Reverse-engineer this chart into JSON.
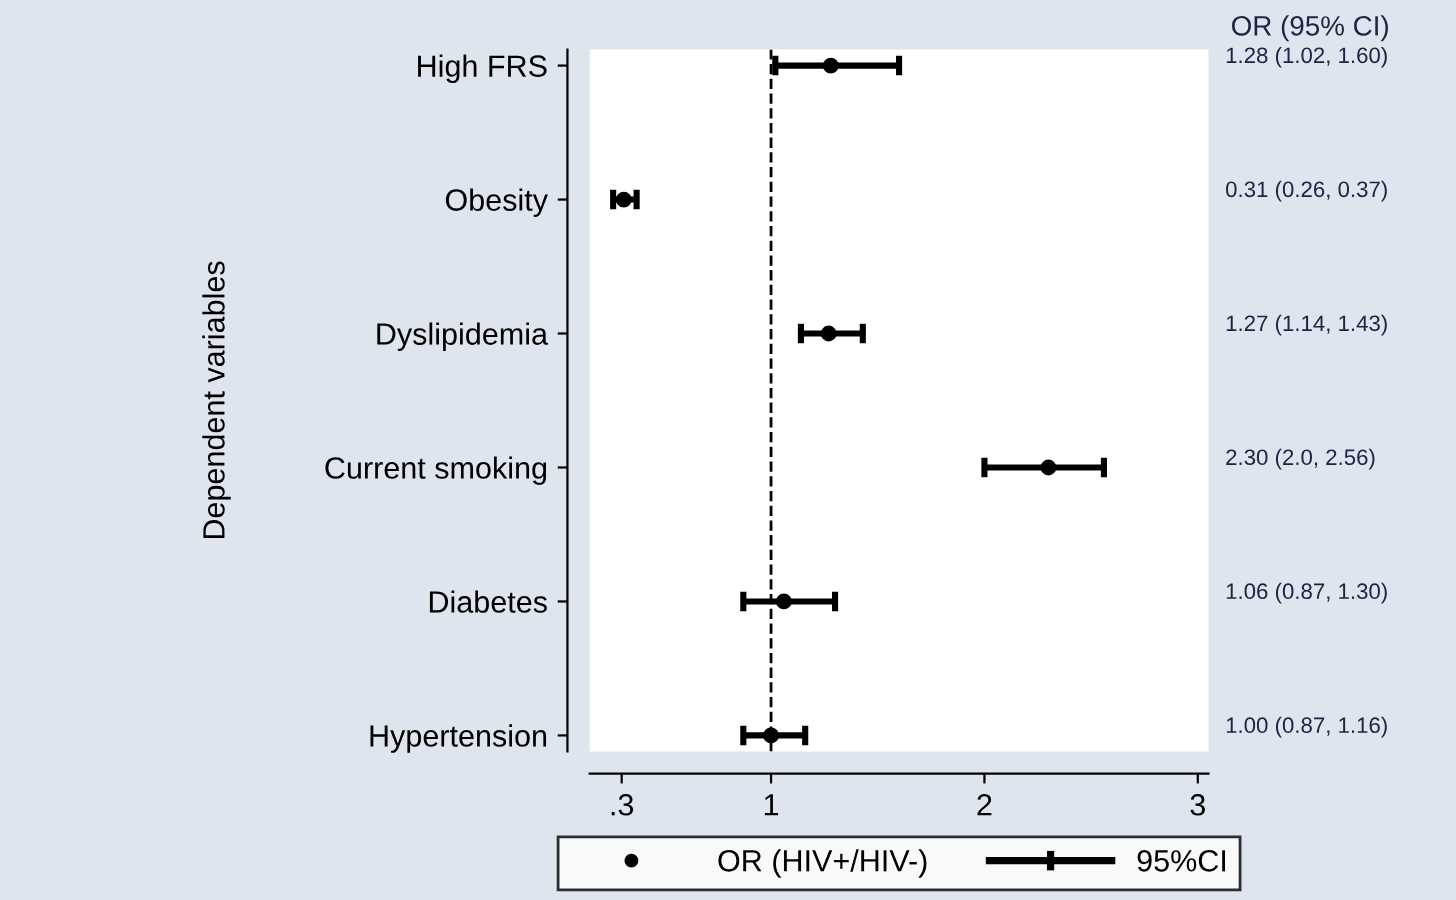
{
  "chart_data": {
    "type": "scatter",
    "orientation": "horizontal",
    "ylabel": "Dependent variables",
    "categories": [
      "High FRS",
      "Obesity",
      "Dyslipidemia",
      "Current smoking",
      "Diabetes",
      "Hypertension"
    ],
    "series": [
      {
        "name": "OR (HIV+/HIV-)",
        "color": "#000000",
        "values": [
          1.28,
          0.31,
          1.27,
          2.3,
          1.06,
          1.0
        ],
        "errors": [
          [
            1.02,
            1.6
          ],
          [
            0.26,
            0.37
          ],
          [
            1.14,
            1.43
          ],
          [
            2.0,
            2.56
          ],
          [
            0.87,
            1.3
          ],
          [
            0.87,
            1.16
          ]
        ]
      }
    ],
    "annotations": [
      "OR (95% CI)",
      "95%CI",
      "1.28 (1.02, 1.60)",
      "0.31 (0.26, 0.37)",
      "1.27 (1.14, 1.43)",
      "2.30 (2.0, 2.56)",
      "1.06 (0.87, 1.30)",
      "1.00 (0.87, 1.16)"
    ],
    "xlim": [
      0.15,
      3.05
    ],
    "xticks": [
      {
        "value": 0.3,
        "label": ".3"
      },
      1,
      2,
      3
    ],
    "ref_lines": [
      {
        "axis": "x",
        "value": 1,
        "line_style": "dashed",
        "color": "#000000"
      }
    ],
    "marker": "circle",
    "grid": false,
    "legend": "bottom"
  }
}
